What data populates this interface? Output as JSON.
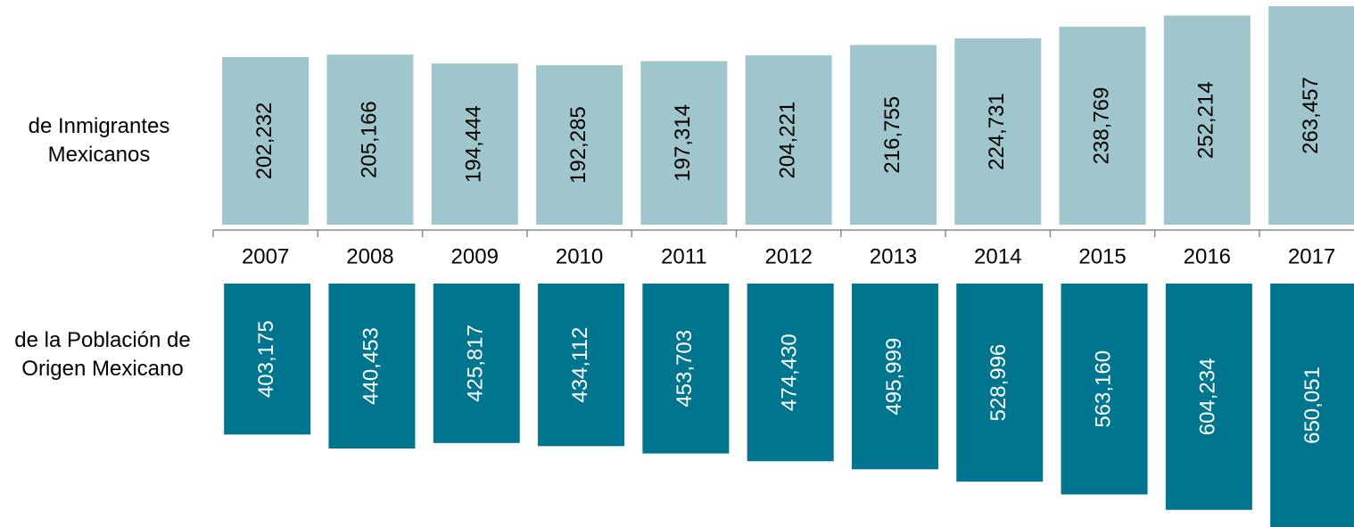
{
  "chart_data": {
    "type": "mirrored-bar",
    "categories": [
      "2007",
      "2008",
      "2009",
      "2010",
      "2011",
      "2012",
      "2013",
      "2014",
      "2015",
      "2016",
      "2017"
    ],
    "series": [
      {
        "name": "de Inmigrantes Mexicanos",
        "color": "#9fc5cd",
        "values": [
          202232,
          205166,
          194444,
          192285,
          197314,
          204221,
          216755,
          224731,
          238769,
          252214,
          263457
        ],
        "value_labels": [
          "202,232",
          "205,166",
          "194,444",
          "192,285",
          "197,314",
          "204,221",
          "216,755",
          "224,731",
          "238,769",
          "252,214",
          "263,457"
        ]
      },
      {
        "name": "de la Población de Origen Mexicano",
        "color": "#00758f",
        "values": [
          403175,
          440453,
          425817,
          434112,
          453703,
          474430,
          495999,
          528996,
          563160,
          604234,
          650051
        ],
        "value_labels": [
          "403,175",
          "440,453",
          "425,817",
          "434,112",
          "453,703",
          "474,430",
          "495,999",
          "528,996",
          "563,160",
          "604,234",
          "650,051"
        ]
      }
    ]
  }
}
